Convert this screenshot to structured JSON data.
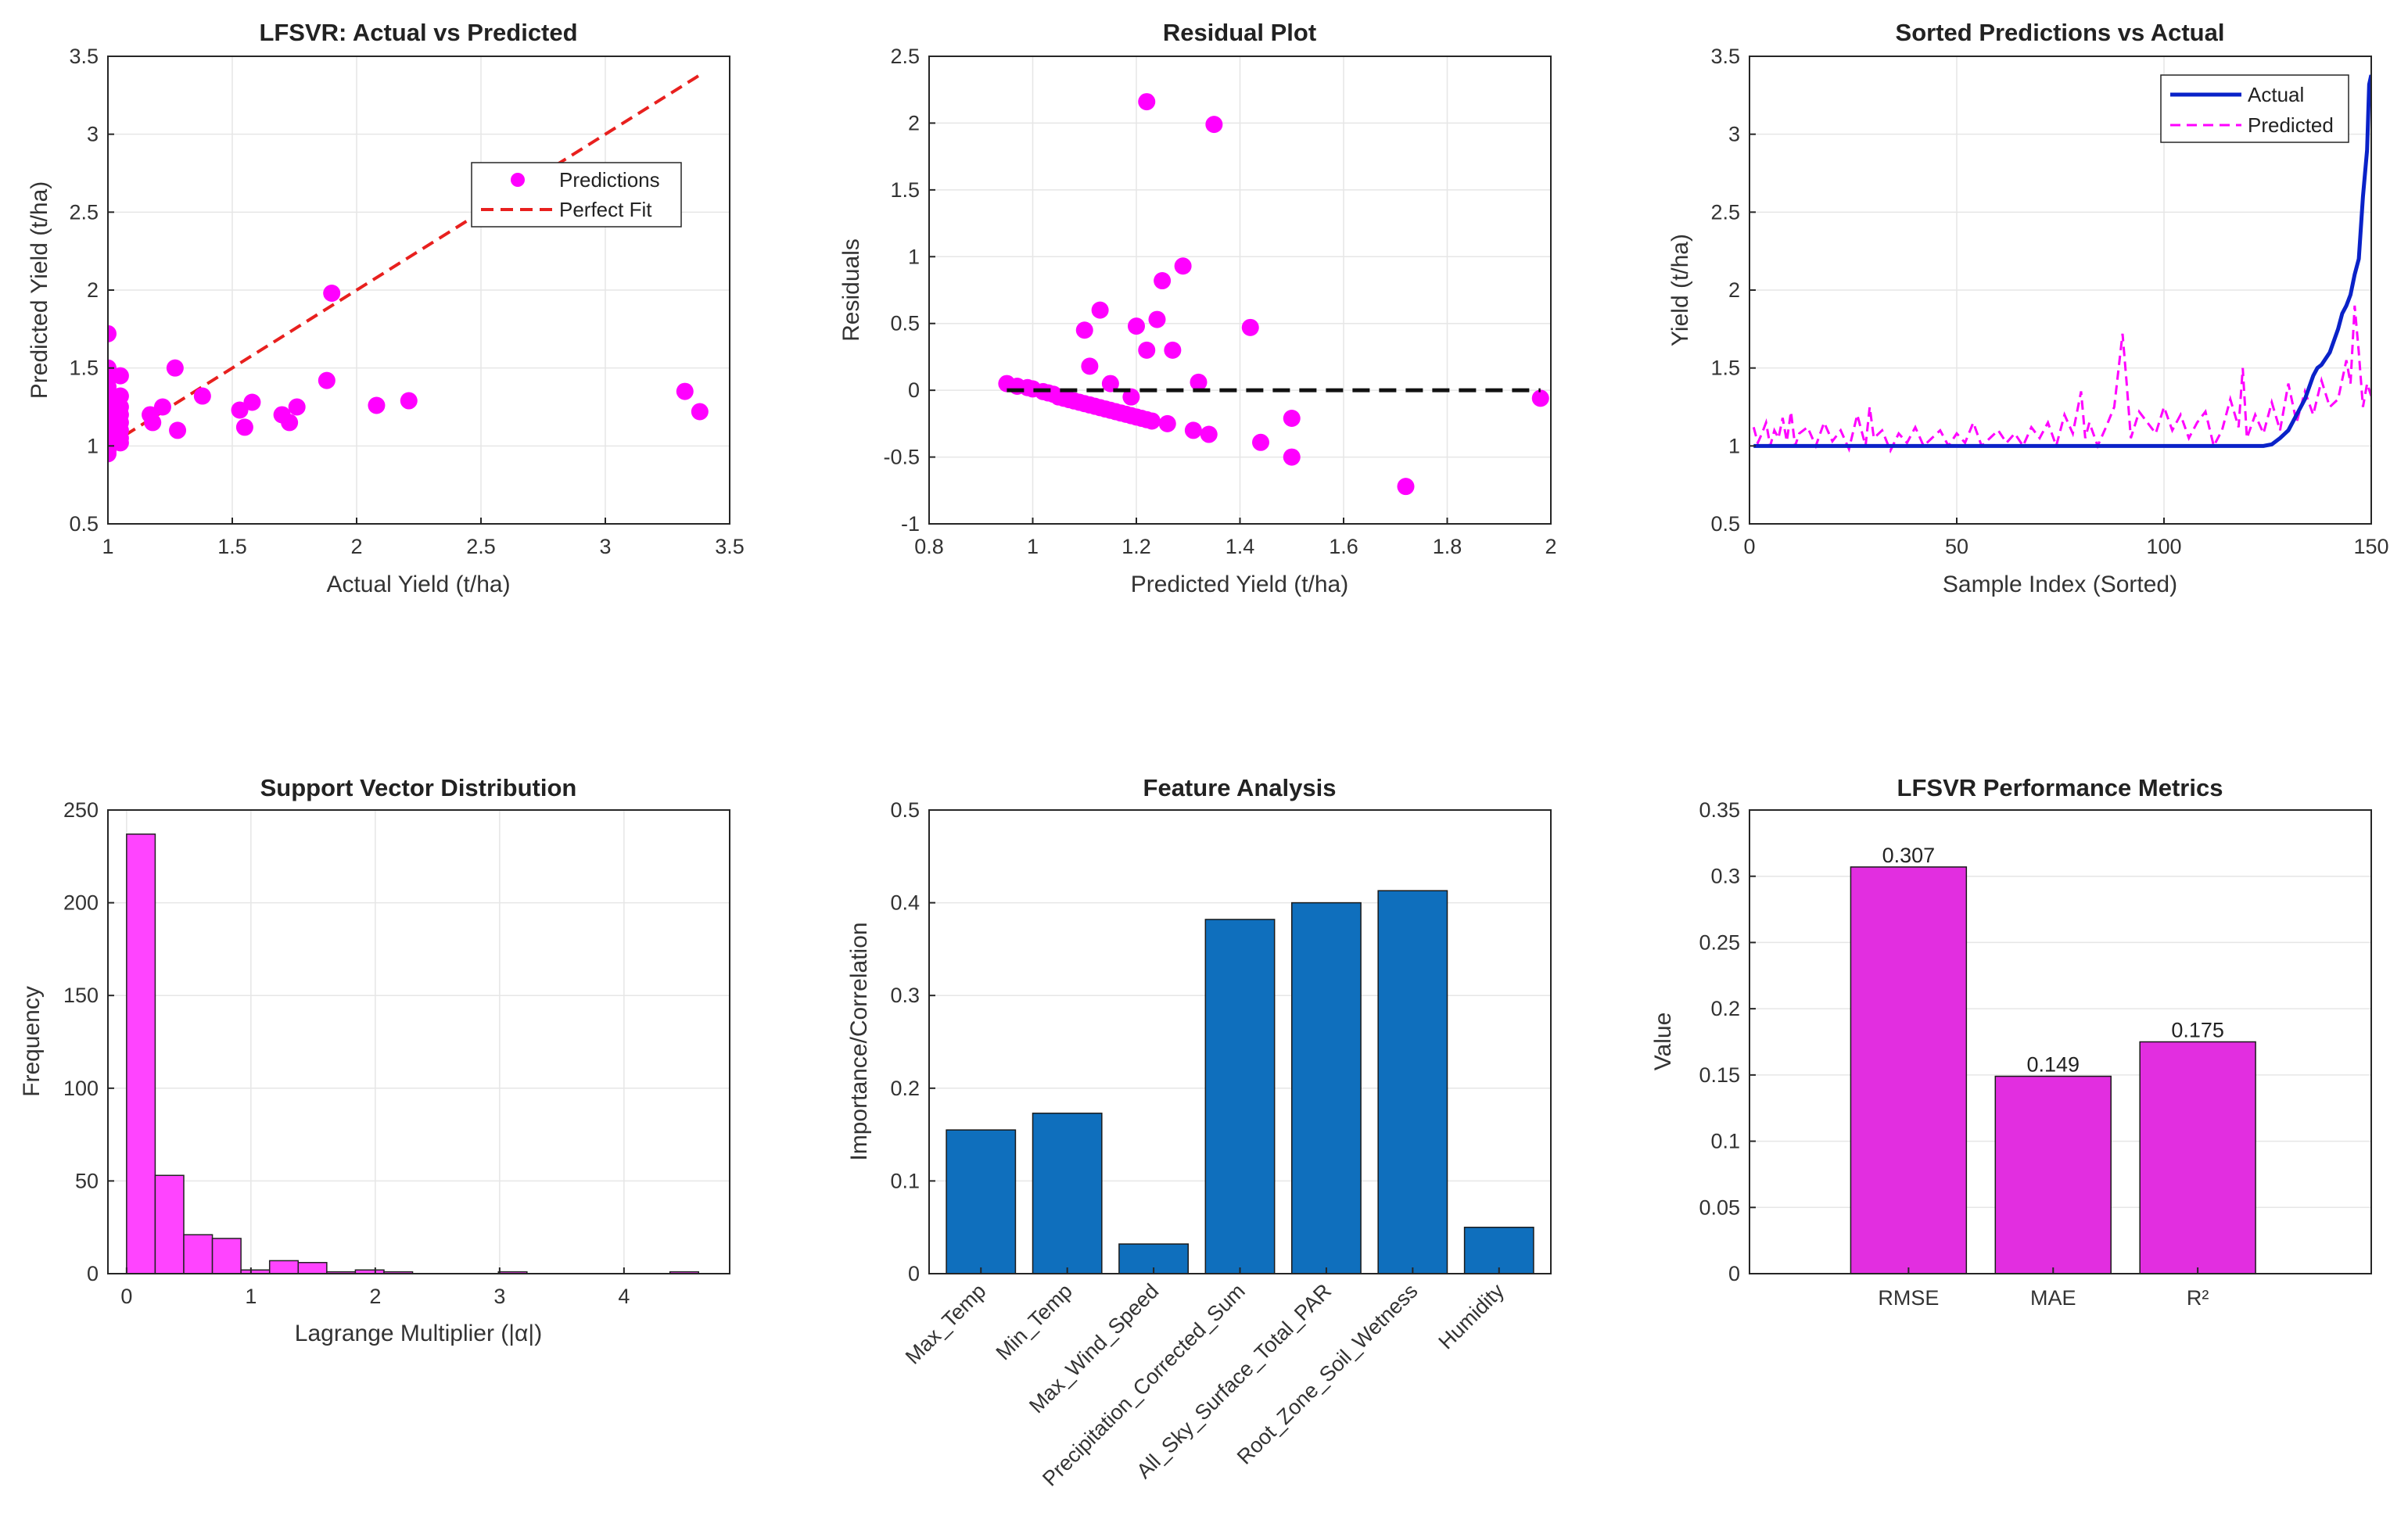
{
  "colors": {
    "magenta": "#ff00ff",
    "bar_magenta": "#e22ee0",
    "hist_fill": "#ff44ff",
    "red": "#e8201e",
    "blue": "#0a22c8",
    "feature_blue": "#0f6fbd",
    "black": "#111111"
  },
  "chart_data": [
    {
      "id": "actual_vs_predicted",
      "type": "scatter",
      "title": "LFSVR: Actual vs Predicted",
      "xlabel": "Actual Yield (t/ha)",
      "ylabel": "Predicted Yield (t/ha)",
      "xlim": [
        1,
        3.5
      ],
      "ylim": [
        0.5,
        3.5
      ],
      "xticks": [
        "1",
        "1.5",
        "2",
        "2.5",
        "3",
        "3.5"
      ],
      "yticks": [
        "0.5",
        "1",
        "1.5",
        "2",
        "2.5",
        "3",
        "3.5"
      ],
      "legend": [
        "Predictions",
        "Perfect Fit"
      ],
      "legend_position": "upper-right",
      "series": [
        {
          "name": "Predictions",
          "x": [
            1,
            1,
            1,
            1,
            1,
            1,
            1,
            1,
            1,
            1,
            1,
            1,
            1,
            1,
            1,
            1,
            1,
            1,
            1,
            1,
            1,
            1,
            1.03,
            1.05,
            1.05,
            1.05,
            1.05,
            1.05,
            1.05,
            1.05,
            1.05,
            1.17,
            1.18,
            1.22,
            1.27,
            1.28,
            1.38,
            1.53,
            1.55,
            1.58,
            1.7,
            1.73,
            1.76,
            1.88,
            1.9,
            2.08,
            2.21,
            3.32,
            3.38
          ],
          "y": [
            0.95,
            0.97,
            1.0,
            1.02,
            1.05,
            1.08,
            1.1,
            1.12,
            1.15,
            1.18,
            1.2,
            1.22,
            1.25,
            1.28,
            1.32,
            1.38,
            1.45,
            1.5,
            1.72,
            1.05,
            1.13,
            1.27,
            1.15,
            1.02,
            1.05,
            1.1,
            1.15,
            1.2,
            1.25,
            1.32,
            1.45,
            1.2,
            1.15,
            1.25,
            1.5,
            1.1,
            1.32,
            1.23,
            1.12,
            1.28,
            1.2,
            1.15,
            1.25,
            1.42,
            1.98,
            1.26,
            1.29,
            1.35,
            1.22
          ]
        },
        {
          "name": "Perfect Fit",
          "style": "dashed-line",
          "x": [
            1,
            3.38
          ],
          "y": [
            1,
            3.38
          ]
        }
      ]
    },
    {
      "id": "residuals",
      "type": "scatter",
      "title": "Residual Plot",
      "xlabel": "Predicted Yield (t/ha)",
      "ylabel": "Residuals",
      "xlim": [
        0.8,
        2
      ],
      "ylim": [
        -1,
        2.5
      ],
      "xticks": [
        "0.8",
        "1",
        "1.2",
        "1.4",
        "1.6",
        "1.8",
        "2"
      ],
      "yticks": [
        "-1",
        "-0.5",
        "0",
        "0.5",
        "1",
        "1.5",
        "2",
        "2.5"
      ],
      "series": [
        {
          "name": "Residuals",
          "x": [
            0.95,
            0.97,
            0.99,
            1.0,
            1.02,
            1.03,
            1.04,
            1.05,
            1.06,
            1.07,
            1.08,
            1.09,
            1.1,
            1.11,
            1.12,
            1.13,
            1.14,
            1.15,
            1.16,
            1.17,
            1.18,
            1.19,
            1.2,
            1.21,
            1.22,
            1.23,
            1.1,
            1.13,
            1.11,
            1.15,
            1.19,
            1.2,
            1.22,
            1.24,
            1.25,
            1.26,
            1.27,
            1.29,
            1.31,
            1.32,
            1.34,
            1.42,
            1.44,
            1.5,
            1.5,
            1.72,
            1.98,
            1.22,
            1.35
          ],
          "y": [
            0.05,
            0.03,
            0.02,
            0.01,
            -0.01,
            -0.02,
            -0.03,
            -0.05,
            -0.06,
            -0.07,
            -0.08,
            -0.09,
            -0.1,
            -0.11,
            -0.12,
            -0.13,
            -0.14,
            -0.15,
            -0.16,
            -0.17,
            -0.18,
            -0.19,
            -0.2,
            -0.21,
            -0.22,
            -0.23,
            0.45,
            0.6,
            0.18,
            0.05,
            -0.05,
            0.48,
            0.3,
            0.53,
            0.82,
            -0.25,
            0.3,
            0.93,
            -0.3,
            0.06,
            -0.33,
            0.47,
            -0.39,
            -0.21,
            -0.5,
            -0.72,
            -0.06,
            2.16,
            1.99
          ]
        },
        {
          "name": "Zero line",
          "style": "dashed-line",
          "x": [
            0.95,
            1.98
          ],
          "y": [
            0,
            0
          ]
        }
      ]
    },
    {
      "id": "sorted_predictions",
      "type": "line",
      "title": "Sorted Predictions vs Actual",
      "xlabel": "Sample Index (Sorted)",
      "ylabel": "Yield (t/ha)",
      "xlim": [
        0,
        150
      ],
      "ylim": [
        0.5,
        3.5
      ],
      "xticks": [
        "0",
        "50",
        "100",
        "150"
      ],
      "yticks": [
        "0.5",
        "1",
        "1.5",
        "2",
        "2.5",
        "3",
        "3.5"
      ],
      "legend": [
        "Actual",
        "Predicted"
      ],
      "legend_position": "upper-right",
      "series": [
        {
          "name": "Actual",
          "x": [
            1,
            124,
            126,
            128,
            130,
            132,
            134,
            136,
            137,
            138,
            140,
            142,
            143,
            144,
            145,
            146,
            147,
            148,
            149,
            149.5,
            150
          ],
          "y": [
            1,
            1,
            1.01,
            1.05,
            1.1,
            1.2,
            1.3,
            1.45,
            1.5,
            1.52,
            1.6,
            1.75,
            1.85,
            1.9,
            1.97,
            2.1,
            2.2,
            2.6,
            2.9,
            3.32,
            3.38
          ]
        },
        {
          "name": "Predicted",
          "style": "dashed-line",
          "x": [
            1,
            2,
            3,
            4,
            5,
            6,
            7,
            8,
            9,
            10,
            11,
            12,
            14,
            16,
            18,
            20,
            22,
            24,
            26,
            28,
            29,
            30,
            32,
            34,
            36,
            38,
            40,
            42,
            44,
            46,
            48,
            50,
            52,
            54,
            56,
            58,
            60,
            62,
            64,
            66,
            68,
            70,
            72,
            74,
            76,
            78,
            80,
            81,
            82,
            84,
            86,
            88,
            90,
            91,
            92,
            94,
            96,
            98,
            100,
            102,
            104,
            106,
            108,
            110,
            112,
            114,
            116,
            118,
            119,
            120,
            122,
            124,
            126,
            128,
            130,
            132,
            134,
            136,
            138,
            140,
            142,
            144,
            145,
            146,
            147,
            148,
            149,
            150
          ],
          "y": [
            1.12,
            1.02,
            1.08,
            1.15,
            1.0,
            1.1,
            1.05,
            1.18,
            1.03,
            1.22,
            1.0,
            1.08,
            1.12,
            1.0,
            1.15,
            1.03,
            1.1,
            0.98,
            1.2,
            1.0,
            1.25,
            1.05,
            1.1,
            0.97,
            1.08,
            1.02,
            1.12,
            1.0,
            1.05,
            1.1,
            1.0,
            1.08,
            1.02,
            1.15,
            1.0,
            1.05,
            1.1,
            1.02,
            1.08,
            1.0,
            1.12,
            1.05,
            1.15,
            1.0,
            1.2,
            1.08,
            1.35,
            1.05,
            1.15,
            1.0,
            1.12,
            1.25,
            1.72,
            1.4,
            1.05,
            1.22,
            1.15,
            1.08,
            1.25,
            1.1,
            1.2,
            1.05,
            1.15,
            1.22,
            1.0,
            1.1,
            1.3,
            1.12,
            1.5,
            1.05,
            1.2,
            1.08,
            1.28,
            1.1,
            1.4,
            1.15,
            1.35,
            1.2,
            1.42,
            1.25,
            1.3,
            1.55,
            1.4,
            1.9,
            1.6,
            1.25,
            1.4,
            1.32
          ]
        }
      ]
    },
    {
      "id": "support_vectors",
      "type": "bar",
      "title": "Support Vector Distribution",
      "xlabel": "Lagrange Multiplier (|α|)",
      "ylabel": "Frequency",
      "xlim": [
        -0.15,
        4.85
      ],
      "ylim": [
        0,
        250
      ],
      "xticks": [
        "0",
        "1",
        "2",
        "3",
        "4"
      ],
      "yticks": [
        "0",
        "50",
        "100",
        "150",
        "200",
        "250"
      ],
      "bin_width": 0.23,
      "bin_starts": [
        0,
        0.23,
        0.46,
        0.69,
        0.92,
        1.15,
        1.38,
        1.61,
        1.84,
        2.07,
        2.3,
        2.53,
        2.76,
        2.99,
        3.22,
        3.45,
        3.68,
        3.91,
        4.14,
        4.37
      ],
      "values": [
        237,
        53,
        21,
        19,
        2,
        7,
        6,
        1,
        2,
        1,
        0,
        0,
        0,
        1,
        0,
        0,
        0,
        0,
        0,
        1
      ]
    },
    {
      "id": "feature_analysis",
      "type": "bar",
      "title": "Feature Analysis",
      "xlabel": "",
      "ylabel": "Importance/Correlation",
      "ylim": [
        0,
        0.5
      ],
      "yticks": [
        "0",
        "0.1",
        "0.2",
        "0.3",
        "0.4",
        "0.5"
      ],
      "categories": [
        "Max_Temp",
        "Min_Temp",
        "Max_Wind_Speed",
        "Precipitation_Corrected_Sum",
        "All_Sky_Surface_Total_PAR",
        "Root_Zone_Soil_Wetness",
        "Humidity"
      ],
      "values": [
        0.155,
        0.173,
        0.032,
        0.382,
        0.4,
        0.413,
        0.05
      ]
    },
    {
      "id": "performance_metrics",
      "type": "bar",
      "title": "LFSVR Performance Metrics",
      "xlabel": "",
      "ylabel": "Value",
      "ylim": [
        0,
        0.35
      ],
      "yticks": [
        "0",
        "0.05",
        "0.1",
        "0.15",
        "0.2",
        "0.25",
        "0.3",
        "0.35"
      ],
      "categories": [
        "RMSE",
        "MAE",
        "R²"
      ],
      "values": [
        0.307,
        0.149,
        0.175
      ],
      "data_labels": [
        "0.307",
        "0.149",
        "0.175"
      ]
    }
  ]
}
